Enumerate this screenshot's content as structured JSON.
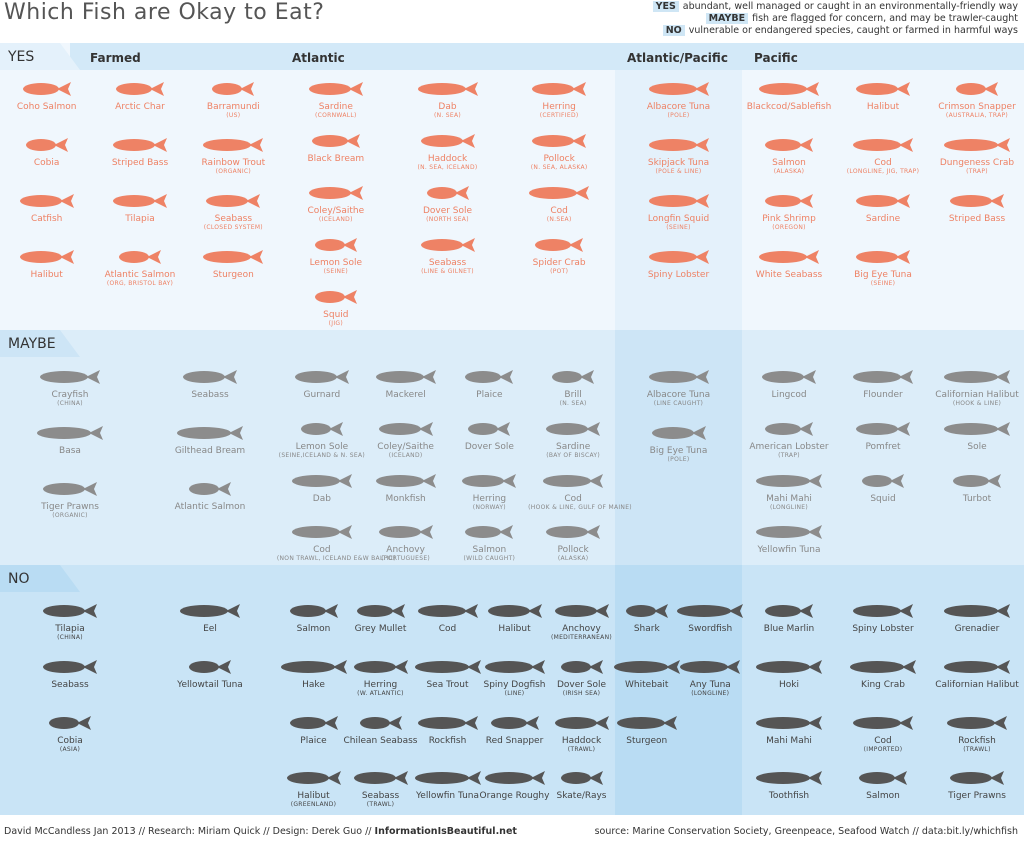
{
  "header": {
    "title": "Which Fish are Okay to Eat?",
    "legend": [
      {
        "key": "YES",
        "text": "abundant, well managed or caught in an environmentally-friendly way"
      },
      {
        "key": "MAYBE",
        "text": "fish are flagged for concern, and may be trawler-caught"
      },
      {
        "key": "NO",
        "text": "vulnerable or endangered species, caught or farmed in harmful ways"
      }
    ]
  },
  "columns": [
    "Farmed",
    "Atlantic",
    "Atlantic/Pacific",
    "Pacific"
  ],
  "rows": [
    {
      "label": "YES",
      "cells": [
        {
          "items": [
            {
              "name": "Coho Salmon"
            },
            {
              "name": "Arctic Char"
            },
            {
              "name": "Barramundi",
              "note": "(US)"
            },
            {
              "name": "Cobia"
            },
            {
              "name": "Striped Bass"
            },
            {
              "name": "Rainbow Trout",
              "note": "(ORGANIC)"
            },
            {
              "name": "Catfish"
            },
            {
              "name": "Tilapia"
            },
            {
              "name": "Seabass",
              "note": "(CLOSED SYSTEM)"
            },
            {
              "name": "Halibut"
            },
            {
              "name": "Atlantic Salmon",
              "note": "(ORG, BRISTOL BAY)"
            },
            {
              "name": "Sturgeon"
            }
          ]
        },
        {
          "items": [
            {
              "name": "Sardine",
              "note": "(CORNWALL)"
            },
            {
              "name": "Dab",
              "note": "(N. SEA)"
            },
            {
              "name": "Herring",
              "note": "(CERTIFIED)"
            },
            {
              "name": "Black Bream"
            },
            {
              "name": "Haddock",
              "note": "(N. SEA, ICELAND)"
            },
            {
              "name": "Pollock",
              "note": "(N. SEA, ALASKA)"
            },
            {
              "name": "Coley/Saithe",
              "note": "(ICELAND)"
            },
            {
              "name": "Dover Sole",
              "note": "(NORTH SEA)"
            },
            {
              "name": "Cod",
              "note": "(N.SEA)"
            },
            {
              "name": "Lemon Sole",
              "note": "(SEINE)"
            },
            {
              "name": "Seabass",
              "note": "(LINE & GILNET)"
            },
            {
              "name": "Spider Crab",
              "note": "(POT)"
            },
            {
              "name": "Squid",
              "note": "(JIG)"
            }
          ]
        },
        {
          "items": [
            {
              "name": "Albacore Tuna",
              "note": "(POLE)"
            },
            {
              "name": "Skipjack Tuna",
              "note": "(POLE & LINE)"
            },
            {
              "name": "Longfin Squid",
              "note": "(SEINE)"
            },
            {
              "name": "Spiny Lobster"
            }
          ]
        },
        {
          "items": [
            {
              "name": "Blackcod/Sablefish"
            },
            {
              "name": "Halibut"
            },
            {
              "name": "Crimson Snapper",
              "note": "(AUSTRALIA, TRAP)"
            },
            {
              "name": "Salmon",
              "note": "(ALASKA)"
            },
            {
              "name": "Cod",
              "note": "(LONGLINE, JIG, TRAP)"
            },
            {
              "name": "Dungeness Crab",
              "note": "(TRAP)"
            },
            {
              "name": "Pink Shrimp",
              "note": "(OREGON)"
            },
            {
              "name": "Sardine"
            },
            {
              "name": "Striped Bass"
            },
            {
              "name": "White Seabass"
            },
            {
              "name": "Big Eye Tuna",
              "note": "(SEINE)"
            }
          ]
        }
      ]
    },
    {
      "label": "MAYBE",
      "cells": [
        {
          "items": [
            {
              "name": "Crayfish",
              "note": "(CHINA)"
            },
            {
              "name": "Seabass"
            },
            {
              "name": "Basa"
            },
            {
              "name": "Gilthead Bream"
            },
            {
              "name": "Tiger Prawns",
              "note": "(ORGANIC)"
            },
            {
              "name": "Atlantic Salmon"
            }
          ]
        },
        {
          "items": [
            {
              "name": "Gurnard"
            },
            {
              "name": "Mackerel"
            },
            {
              "name": "Plaice"
            },
            {
              "name": "Brill",
              "note": "(N. SEA)"
            },
            {
              "name": "Lemon Sole",
              "note": "(SEINE,ICELAND & N. SEA)"
            },
            {
              "name": "Coley/Saithe",
              "note": "(ICELAND)"
            },
            {
              "name": "Dover Sole"
            },
            {
              "name": "Sardine",
              "note": "(BAY OF BISCAY)"
            },
            {
              "name": "Dab"
            },
            {
              "name": "Monkfish"
            },
            {
              "name": "Herring",
              "note": "(NORWAY)"
            },
            {
              "name": "Cod",
              "note": "(HOOK & LINE, GULF OF MAINE)"
            },
            {
              "name": "Cod",
              "note": "(NON TRAWL, ICELAND E&W BALTIC)"
            },
            {
              "name": "Anchovy",
              "note": "(PORTUGUESE)"
            },
            {
              "name": "Salmon",
              "note": "(WILD CAUGHT)"
            },
            {
              "name": "Pollock",
              "note": "(ALASKA)"
            }
          ]
        },
        {
          "items": [
            {
              "name": "Albacore Tuna",
              "note": "(LINE CAUGHT)"
            },
            {
              "name": "Big Eye Tuna",
              "note": "(POLE)"
            }
          ]
        },
        {
          "items": [
            {
              "name": "Lingcod"
            },
            {
              "name": "Flounder"
            },
            {
              "name": "Californian Halibut",
              "note": "(HOOK & LINE)"
            },
            {
              "name": "American Lobster",
              "note": "(TRAP)"
            },
            {
              "name": "Pomfret"
            },
            {
              "name": "Sole"
            },
            {
              "name": "Mahi Mahi",
              "note": "(LONGLINE)"
            },
            {
              "name": "Squid"
            },
            {
              "name": "Turbot"
            },
            {
              "name": "Yellowfin Tuna"
            }
          ]
        }
      ]
    },
    {
      "label": "NO",
      "cells": [
        {
          "items": [
            {
              "name": "Tilapia",
              "note": "(CHINA)"
            },
            {
              "name": "Eel"
            },
            {
              "name": "Seabass"
            },
            {
              "name": "Yellowtail Tuna"
            },
            {
              "name": "Cobia",
              "note": "(ASIA)"
            }
          ]
        },
        {
          "items": [
            {
              "name": "Salmon"
            },
            {
              "name": "Grey Mullet"
            },
            {
              "name": "Cod"
            },
            {
              "name": "Halibut"
            },
            {
              "name": "Anchovy",
              "note": "(MEDITERRANEAN)"
            },
            {
              "name": "Hake"
            },
            {
              "name": "Herring",
              "note": "(W. ATLANTIC)"
            },
            {
              "name": "Sea Trout"
            },
            {
              "name": "Spiny Dogfish",
              "note": "(LINE)"
            },
            {
              "name": "Dover Sole",
              "note": "(IRISH SEA)"
            },
            {
              "name": "Plaice"
            },
            {
              "name": "Chilean Seabass"
            },
            {
              "name": "Rockfish"
            },
            {
              "name": "Red Snapper"
            },
            {
              "name": "Haddock",
              "note": "(TRAWL)"
            },
            {
              "name": "Halibut",
              "note": "(GREENLAND)"
            },
            {
              "name": "Seabass",
              "note": "(TRAWL)"
            },
            {
              "name": "Yellowfin Tuna"
            },
            {
              "name": "Orange Roughy"
            },
            {
              "name": "Skate/Rays"
            }
          ]
        },
        {
          "items": [
            {
              "name": "Shark"
            },
            {
              "name": "Swordfish"
            },
            {
              "name": "Whitebait"
            },
            {
              "name": "Any Tuna",
              "note": "(LONGLINE)"
            },
            {
              "name": "Sturgeon"
            }
          ]
        },
        {
          "items": [
            {
              "name": "Blue Marlin"
            },
            {
              "name": "Spiny Lobster"
            },
            {
              "name": "Grenadier"
            },
            {
              "name": "Hoki"
            },
            {
              "name": "King Crab"
            },
            {
              "name": "Californian Halibut"
            },
            {
              "name": "Mahi Mahi"
            },
            {
              "name": "Cod",
              "note": "(IMPORTED)"
            },
            {
              "name": "Rockfish",
              "note": "(TRAWL)"
            },
            {
              "name": "Toothfish"
            },
            {
              "name": "Salmon"
            },
            {
              "name": "Tiger Prawns"
            }
          ]
        }
      ]
    }
  ],
  "footer": {
    "credits": [
      "David McCandless Jan 2013 // Research: Miriam Quick // Design: Derek Guo //",
      "InformationIsBeautiful.net"
    ],
    "source": "source: Marine Conservation Society, Greenpeace, Seafood Watch // data:bit.ly/whichfish"
  }
}
